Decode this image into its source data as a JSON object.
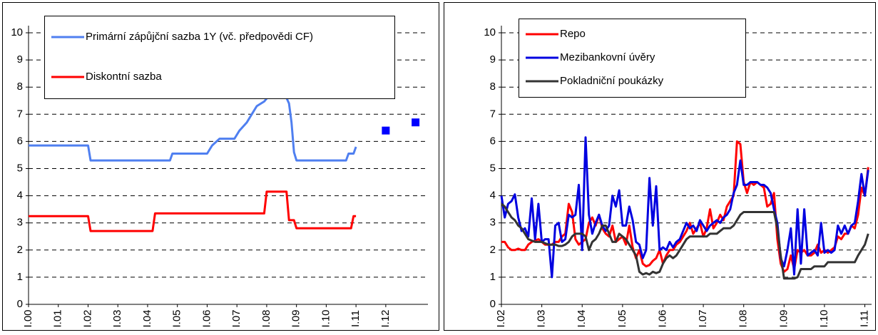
{
  "chart_data": [
    {
      "type": "line",
      "legend": "upper left",
      "grid": true,
      "xlim": [
        "2000-01",
        "2013-06"
      ],
      "ylim": [
        0,
        10
      ],
      "yticks": [
        0,
        1,
        2,
        3,
        4,
        5,
        6,
        7,
        8,
        9,
        10
      ],
      "xticks": [
        {
          "value": "2000-01",
          "label": "I.00"
        },
        {
          "value": "2001-01",
          "label": "I.01"
        },
        {
          "value": "2002-01",
          "label": "I.02"
        },
        {
          "value": "2003-01",
          "label": "I.03"
        },
        {
          "value": "2004-01",
          "label": "I.04"
        },
        {
          "value": "2005-01",
          "label": "I.05"
        },
        {
          "value": "2006-01",
          "label": "I.06"
        },
        {
          "value": "2007-01",
          "label": "I.07"
        },
        {
          "value": "2008-01",
          "label": "I.08"
        },
        {
          "value": "2009-01",
          "label": "I.09"
        },
        {
          "value": "2010-01",
          "label": "I.10"
        },
        {
          "value": "2011-01",
          "label": "I.11"
        },
        {
          "value": "2012-01",
          "label": "I.12"
        }
      ],
      "series": [
        {
          "name": "Primární zápůjční sazba 1Y (vč. předpovědi CF)",
          "color": "#4f7ff0",
          "x": [
            "2000-01",
            "2002-01",
            "2002-02",
            "2004-10",
            "2004-11",
            "2006-01",
            "2006-03",
            "2006-06",
            "2006-12",
            "2007-02",
            "2007-05",
            "2007-07",
            "2007-09",
            "2007-12",
            "2008-03",
            "2008-08",
            "2008-10",
            "2008-11",
            "2008-12",
            "2009-01",
            "2010-09",
            "2010-10",
            "2010-12",
            "2011-01"
          ],
          "values": [
            5.85,
            5.85,
            5.3,
            5.3,
            5.55,
            5.55,
            5.85,
            6.1,
            6.1,
            6.4,
            6.7,
            7.0,
            7.3,
            7.47,
            7.8,
            7.8,
            7.4,
            6.7,
            5.6,
            5.3,
            5.3,
            5.55,
            5.55,
            5.8
          ],
          "forecast": {
            "color": "#0000ff",
            "x": [
              "2012-01",
              "2013-01"
            ],
            "values": [
              6.4,
              6.7
            ]
          }
        },
        {
          "name": "Diskontní sazba",
          "color": "#ff0000",
          "x": [
            "2000-01",
            "2002-01",
            "2002-02",
            "2004-03",
            "2004-04",
            "2007-12",
            "2008-01",
            "2008-09",
            "2008-10",
            "2008-12",
            "2009-01",
            "2010-11",
            "2010-12",
            "2011-01"
          ],
          "values": [
            3.25,
            3.25,
            2.7,
            2.7,
            3.35,
            3.35,
            4.15,
            4.15,
            3.1,
            3.1,
            2.8,
            2.8,
            3.25,
            3.25
          ]
        }
      ]
    },
    {
      "type": "line",
      "legend": "upper left",
      "grid": true,
      "xlim": [
        "2002-01",
        "2011-03"
      ],
      "ylim": [
        0,
        10
      ],
      "yticks": [
        0,
        1,
        2,
        3,
        4,
        5,
        6,
        7,
        8,
        9,
        10
      ],
      "xticks": [
        {
          "value": "2002-01",
          "label": "I.02"
        },
        {
          "value": "2003-01",
          "label": "I.03"
        },
        {
          "value": "2004-01",
          "label": "I.04"
        },
        {
          "value": "2005-01",
          "label": "I.05"
        },
        {
          "value": "2006-01",
          "label": "I.06"
        },
        {
          "value": "2007-01",
          "label": "I.07"
        },
        {
          "value": "2008-01",
          "label": "I.08"
        },
        {
          "value": "2009-01",
          "label": "I.09"
        },
        {
          "value": "2010-01",
          "label": "I.10"
        },
        {
          "value": "2011-01",
          "label": "I.11"
        }
      ],
      "x": [
        "2002-01",
        "2002-02",
        "2002-03",
        "2002-04",
        "2002-05",
        "2002-06",
        "2002-07",
        "2002-08",
        "2002-09",
        "2002-10",
        "2002-11",
        "2002-12",
        "2003-01",
        "2003-02",
        "2003-03",
        "2003-04",
        "2003-05",
        "2003-06",
        "2003-07",
        "2003-08",
        "2003-09",
        "2003-10",
        "2003-11",
        "2003-12",
        "2004-01",
        "2004-02",
        "2004-03",
        "2004-04",
        "2004-05",
        "2004-06",
        "2004-07",
        "2004-08",
        "2004-09",
        "2004-10",
        "2004-11",
        "2004-12",
        "2005-01",
        "2005-02",
        "2005-03",
        "2005-04",
        "2005-05",
        "2005-06",
        "2005-07",
        "2005-08",
        "2005-09",
        "2005-10",
        "2005-11",
        "2005-12",
        "2006-01",
        "2006-02",
        "2006-03",
        "2006-04",
        "2006-05",
        "2006-06",
        "2006-07",
        "2006-08",
        "2006-09",
        "2006-10",
        "2006-11",
        "2006-12",
        "2007-01",
        "2007-02",
        "2007-03",
        "2007-04",
        "2007-05",
        "2007-06",
        "2007-07",
        "2007-08",
        "2007-09",
        "2007-10",
        "2007-11",
        "2007-12",
        "2008-01",
        "2008-02",
        "2008-03",
        "2008-04",
        "2008-05",
        "2008-06",
        "2008-07",
        "2008-08",
        "2008-09",
        "2008-10",
        "2008-11",
        "2008-12",
        "2009-01",
        "2009-02",
        "2009-03",
        "2009-04",
        "2009-05",
        "2009-06",
        "2009-07",
        "2009-08",
        "2009-09",
        "2009-10",
        "2009-11",
        "2009-12",
        "2010-01",
        "2010-02",
        "2010-03",
        "2010-04",
        "2010-05",
        "2010-06",
        "2010-07",
        "2010-08",
        "2010-09",
        "2010-10",
        "2010-11",
        "2010-12",
        "2011-01",
        "2011-02"
      ],
      "series": [
        {
          "name": "Repo",
          "color": "#ff0000",
          "values": [
            2.3,
            2.3,
            2.1,
            2.0,
            2.0,
            2.05,
            2.0,
            2.0,
            2.2,
            2.3,
            2.35,
            2.4,
            2.3,
            2.2,
            2.2,
            2.2,
            2.3,
            2.3,
            2.5,
            2.6,
            3.7,
            3.4,
            2.4,
            2.2,
            2.3,
            2.4,
            3.0,
            3.2,
            2.9,
            3.3,
            2.8,
            2.6,
            2.5,
            2.9,
            2.3,
            2.4,
            2.5,
            2.2,
            2.9,
            2.1,
            1.7,
            2.0,
            1.5,
            1.4,
            1.45,
            1.6,
            1.7,
            2.0,
            1.5,
            1.8,
            2.0,
            2.0,
            2.2,
            2.3,
            2.5,
            2.7,
            3.0,
            2.6,
            2.8,
            3.0,
            2.5,
            2.8,
            3.5,
            2.8,
            3.0,
            3.3,
            3.1,
            3.6,
            3.8,
            4.0,
            6.0,
            5.9,
            4.5,
            4.1,
            4.5,
            4.4,
            4.5,
            4.4,
            4.3,
            3.6,
            3.7,
            4.1,
            2.4,
            1.5,
            1.2,
            1.3,
            1.8,
            1.3,
            2.0,
            1.9,
            2.0,
            1.8,
            1.8,
            1.9,
            2.2,
            1.9,
            2.0,
            1.9,
            2.0,
            2.1,
            2.5,
            2.4,
            2.6,
            2.6,
            2.9,
            2.8,
            3.3,
            4.3,
            4.0,
            5.05
          ]
        },
        {
          "name": "Mezibankovní úvěry",
          "color": "#0000e0",
          "values": [
            4.0,
            3.2,
            3.7,
            3.8,
            4.05,
            3.2,
            2.7,
            2.8,
            2.5,
            3.9,
            2.4,
            3.7,
            2.3,
            2.4,
            2.4,
            1.0,
            2.9,
            3.0,
            2.3,
            2.4,
            3.3,
            3.2,
            3.3,
            4.4,
            2.0,
            6.15,
            3.3,
            2.6,
            3.0,
            3.3,
            2.9,
            2.7,
            2.9,
            4.0,
            3.6,
            4.2,
            2.9,
            2.9,
            3.6,
            3.1,
            2.3,
            2.2,
            1.7,
            2.0,
            4.65,
            2.9,
            4.35,
            2.0,
            2.1,
            2.0,
            2.3,
            2.1,
            2.3,
            2.4,
            2.7,
            3.0,
            2.8,
            2.9,
            2.7,
            3.1,
            2.9,
            2.7,
            2.9,
            3.0,
            3.1,
            3.0,
            3.2,
            3.3,
            3.5,
            4.1,
            4.4,
            5.3,
            4.4,
            4.4,
            4.5,
            4.5,
            4.5,
            4.4,
            4.4,
            4.3,
            4.1,
            3.5,
            3.0,
            1.7,
            1.4,
            2.0,
            2.8,
            1.1,
            3.5,
            1.5,
            3.5,
            1.8,
            1.9,
            2.0,
            1.8,
            3.0,
            1.9,
            2.0,
            1.9,
            2.0,
            2.9,
            2.6,
            2.9,
            2.6,
            2.9,
            3.0,
            3.8,
            4.8,
            4.0,
            4.95
          ]
        },
        {
          "name": "Pokladniční poukázky",
          "color": "#333333",
          "values": [
            3.7,
            3.6,
            3.4,
            3.2,
            3.1,
            2.9,
            2.8,
            2.6,
            2.4,
            2.35,
            2.3,
            2.3,
            2.3,
            2.25,
            2.2,
            2.2,
            2.2,
            2.15,
            2.15,
            2.2,
            2.3,
            2.5,
            2.6,
            2.6,
            2.6,
            2.5,
            2.0,
            2.3,
            2.4,
            2.6,
            2.9,
            2.9,
            2.6,
            2.3,
            2.3,
            2.6,
            2.5,
            2.4,
            2.2,
            2.0,
            1.8,
            1.2,
            1.1,
            1.15,
            1.1,
            1.2,
            1.15,
            1.2,
            1.5,
            1.7,
            1.8,
            1.7,
            1.8,
            2.0,
            2.2,
            2.4,
            2.5,
            2.5,
            2.5,
            2.5,
            2.5,
            2.5,
            2.6,
            2.6,
            2.6,
            2.7,
            2.8,
            2.8,
            2.8,
            2.9,
            3.1,
            3.3,
            3.4,
            3.4,
            3.4,
            3.4,
            3.4,
            3.4,
            3.4,
            3.4,
            3.4,
            3.4,
            2.8,
            1.8,
            0.95,
            0.95,
            0.95,
            0.95,
            1.0,
            1.3,
            1.3,
            1.3,
            1.3,
            1.4,
            1.4,
            1.4,
            1.4,
            1.55,
            1.55,
            1.55,
            1.55,
            1.55,
            1.55,
            1.55,
            1.55,
            1.55,
            1.8,
            2.0,
            2.2,
            2.6
          ]
        }
      ]
    }
  ]
}
